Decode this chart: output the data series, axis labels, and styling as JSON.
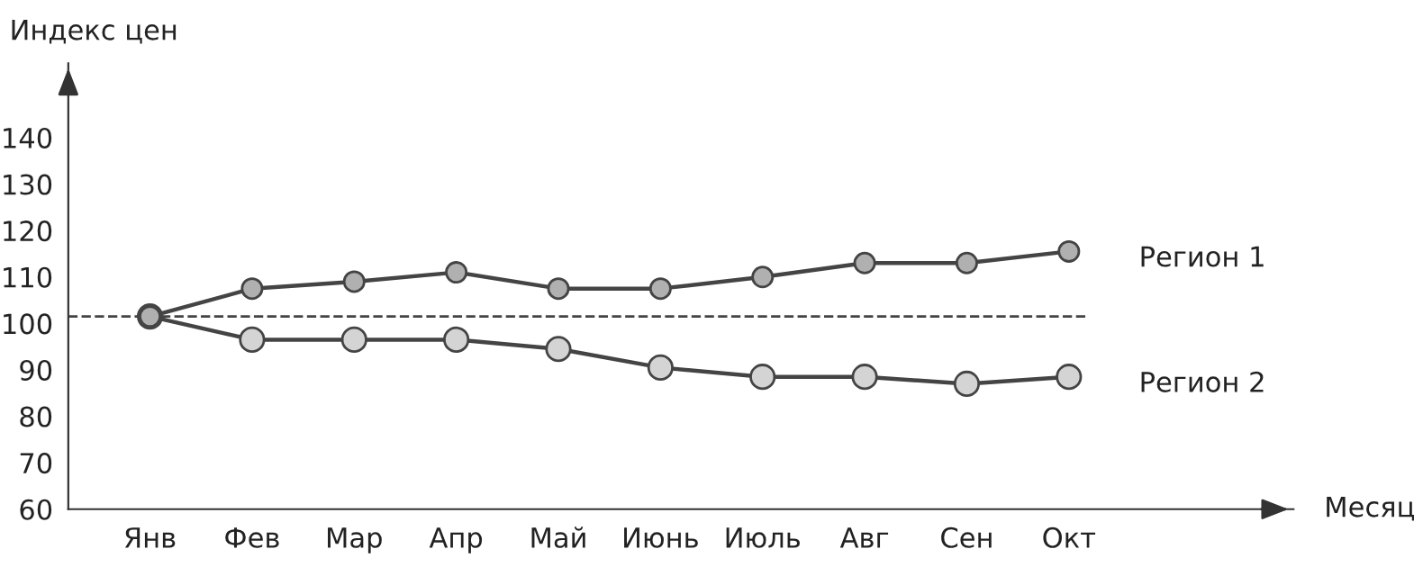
{
  "chart_data": {
    "type": "line",
    "annotations": [
      "Месяц"
    ],
    "ylabel": "Индекс цен",
    "categories": [
      "Янв",
      "Фев",
      "Мар",
      "Апр",
      "Май",
      "Июнь",
      "Июль",
      "Авг",
      "Сен",
      "Окт"
    ],
    "series": [
      {
        "name": "Регион 1",
        "color": "#b0b0b0",
        "values": [
          101.5,
          107.5,
          109,
          111,
          107.5,
          107.5,
          110,
          113,
          113,
          115.5
        ]
      },
      {
        "name": "Регион 2",
        "color": "#d4d4d4",
        "values": [
          101.5,
          96.5,
          96.5,
          96.5,
          94.5,
          90.5,
          88.5,
          88.5,
          87,
          88.5
        ]
      }
    ],
    "ylim": [
      60,
      156
    ],
    "yticks": [
      60,
      70,
      80,
      90,
      100,
      110,
      120,
      130,
      140
    ],
    "ref_lines": [
      {
        "axis": "y",
        "value": 101.5,
        "label": null,
        "color": "#444444",
        "line_style": "dashed"
      }
    ],
    "marker": "circle",
    "line_style": "solid",
    "grid": false,
    "legend": false
  }
}
